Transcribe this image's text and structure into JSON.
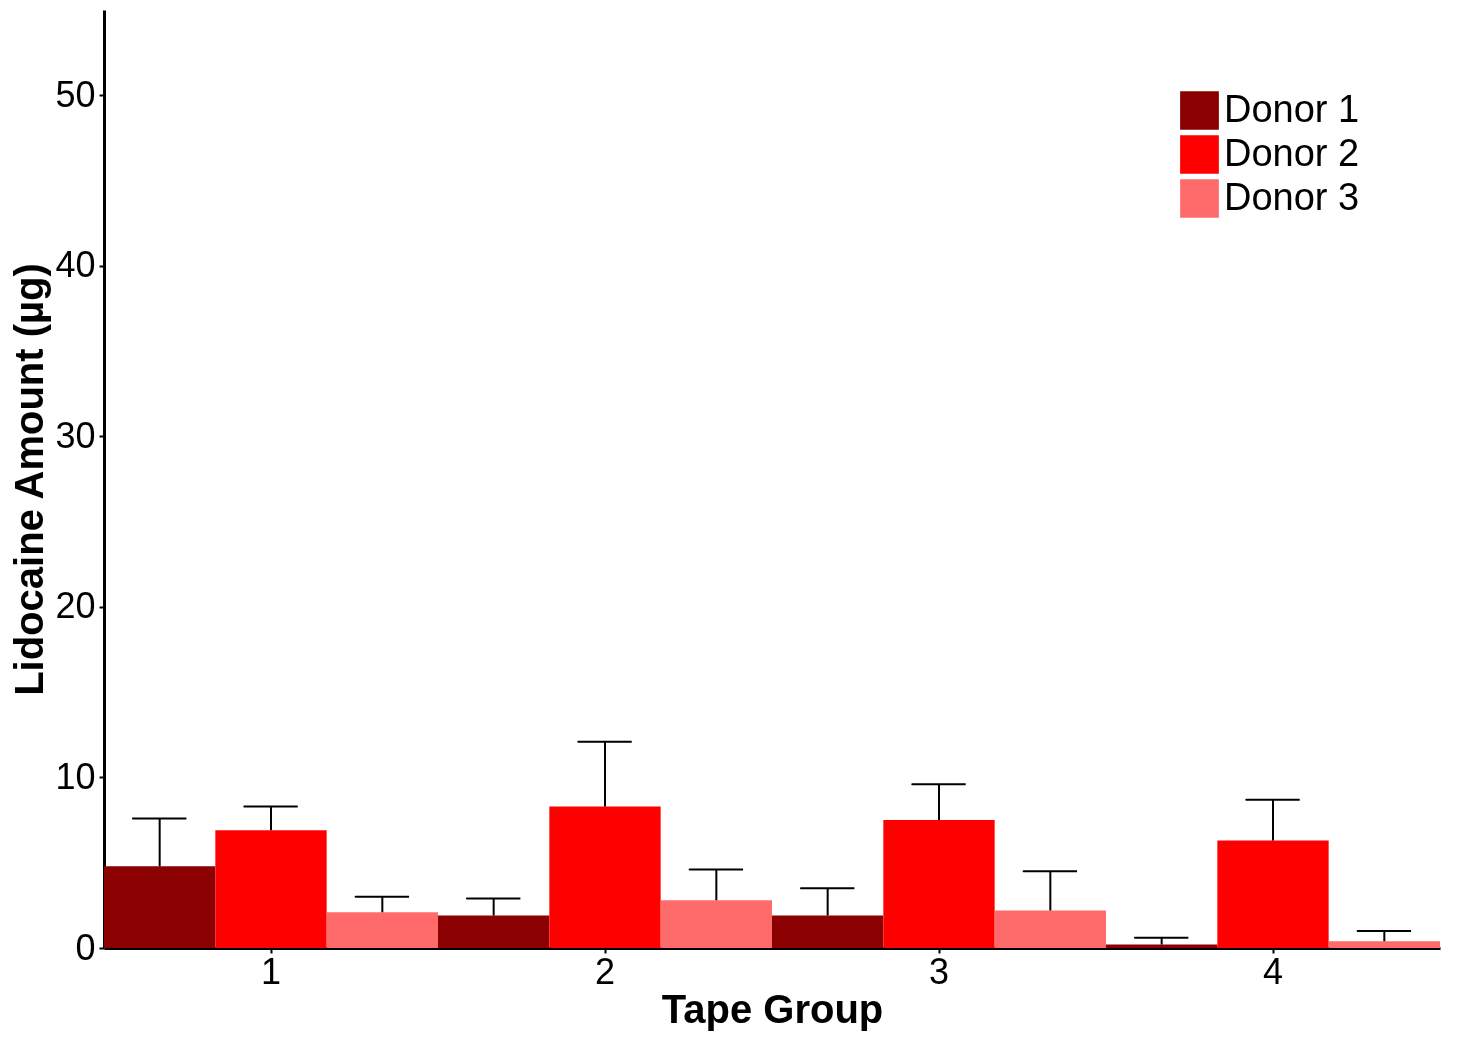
{
  "chart_data": {
    "type": "bar",
    "xlabel": "Tape Group",
    "ylabel": "Lidocaine Amount (µg)",
    "categories": [
      "1",
      "2",
      "3",
      "4"
    ],
    "series": [
      {
        "name": "Donor 1",
        "color": "#8b0000",
        "values": [
          4.8,
          1.9,
          1.9,
          0.2
        ],
        "errors": [
          [
            4.8,
            7.6
          ],
          [
            1.9,
            2.9
          ],
          [
            1.9,
            3.5
          ],
          [
            0.2,
            0.6
          ]
        ]
      },
      {
        "name": "Donor 2",
        "color": "#ff0000",
        "values": [
          6.9,
          8.3,
          7.5,
          6.3
        ],
        "errors": [
          [
            6.9,
            8.3
          ],
          [
            8.3,
            12.1
          ],
          [
            7.5,
            9.6
          ],
          [
            6.3,
            8.7
          ]
        ]
      },
      {
        "name": "Donor 3",
        "color": "#ff6b6b",
        "values": [
          2.1,
          2.8,
          2.2,
          0.4
        ],
        "errors": [
          [
            2.1,
            3.0
          ],
          [
            2.8,
            4.6
          ],
          [
            2.2,
            4.5
          ],
          [
            0.4,
            1.0
          ]
        ]
      }
    ],
    "ylim": [
      0,
      55
    ],
    "yticks": [
      0,
      10,
      20,
      30,
      40,
      50
    ],
    "grid": false,
    "legend": "top right"
  }
}
